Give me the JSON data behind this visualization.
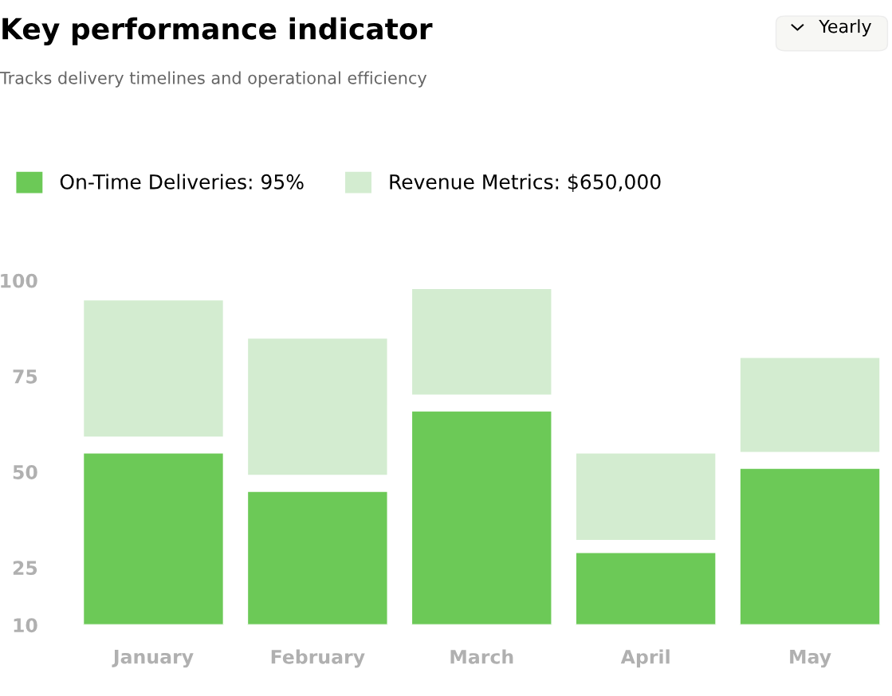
{
  "chart_data": {
    "type": "bar",
    "title": "Key performance indicator",
    "subtitle": "Tracks delivery timelines and operational efficiency",
    "annotations": [
      "Yearly"
    ],
    "categories": [
      "January",
      "February",
      "March",
      "April",
      "May"
    ],
    "series": [
      {
        "name": "On-Time Deliveries: 95%",
        "color": "#6cc957",
        "values": [
          45,
          35,
          56,
          19,
          41
        ],
        "base": [
          10,
          10,
          10,
          10,
          10
        ]
      },
      {
        "name": "Revenue Metrics: $650,000",
        "color": "#d3ecd0",
        "values": [
          36,
          36,
          28,
          23,
          25
        ],
        "base": [
          59,
          49,
          70,
          32,
          55
        ]
      }
    ],
    "ylim": [
      10,
      100
    ],
    "yticks": [
      10,
      25,
      50,
      75,
      100
    ],
    "grid": false,
    "legend": "top left"
  }
}
